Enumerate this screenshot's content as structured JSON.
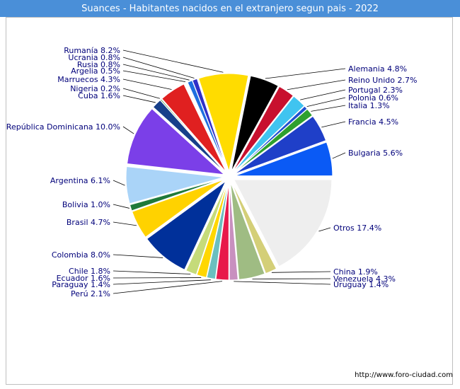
{
  "header": {
    "title": "Suances - Habitantes nacidos en el extranjero segun pais - 2022"
  },
  "footer": {
    "url": "http://www.foro-ciudad.com"
  },
  "chart_data": {
    "type": "pie",
    "title": "Suances - Habitantes nacidos en el extranjero segun pais - 2022",
    "unit": "%",
    "label_color": "#00007a",
    "slices": [
      {
        "label": "Otros",
        "value": 17.4,
        "color": "#eeeeee",
        "text": "Otros 17.4%"
      },
      {
        "label": "China",
        "value": 1.9,
        "color": "#d4cf78",
        "text": "China 1.9%"
      },
      {
        "label": "Venezuela",
        "value": 4.3,
        "color": "#9fbc83",
        "text": "Venezuela 4.3%"
      },
      {
        "label": "Uruguay",
        "value": 1.4,
        "color": "#c890bf",
        "text": "Uruguay 1.4%"
      },
      {
        "label": "Perú",
        "value": 2.1,
        "color": "#e8194a",
        "text": "Perú 2.1%"
      },
      {
        "label": "Paraguay",
        "value": 1.4,
        "color": "#6bbfbf",
        "text": "Paraguay 1.4%"
      },
      {
        "label": "Ecuador",
        "value": 1.6,
        "color": "#ffd700",
        "text": "Ecuador 1.6%"
      },
      {
        "label": "Chile",
        "value": 1.8,
        "color": "#c5db7a",
        "text": "Chile 1.8%"
      },
      {
        "label": "Colombia",
        "value": 8.0,
        "color": "#00309a",
        "text": "Colombia 8.0%"
      },
      {
        "label": "Brasil",
        "value": 4.7,
        "color": "#ffd200",
        "text": "Brasil 4.7%"
      },
      {
        "label": "Bolivia",
        "value": 1.0,
        "color": "#1f7a3a",
        "text": "Bolivia 1.0%"
      },
      {
        "label": "Argentina",
        "value": 6.1,
        "color": "#aad4f8",
        "text": "Argentina 6.1%"
      },
      {
        "label": "República Dominicana",
        "value": 10.0,
        "color": "#7b3fe8",
        "text": "República Dominicana 10.0%"
      },
      {
        "label": "Cuba",
        "value": 1.6,
        "color": "#173f8a",
        "text": "Cuba 1.6%"
      },
      {
        "label": "Nigeria",
        "value": 0.2,
        "color": "#3a8f3a",
        "text": "Nigeria 0.2%"
      },
      {
        "label": "Marruecos",
        "value": 4.3,
        "color": "#e02020",
        "text": "Marruecos 4.3%"
      },
      {
        "label": "Argelia",
        "value": 0.5,
        "color": "#ffffff",
        "text": "Argelia 0.5%"
      },
      {
        "label": "Rusia",
        "value": 0.8,
        "color": "#1e6fe0",
        "text": "Rusia 0.8%"
      },
      {
        "label": "Ucrania",
        "value": 0.8,
        "color": "#3030c8",
        "text": "Ucrania 0.8%"
      },
      {
        "label": "Rumanía",
        "value": 8.2,
        "color": "#ffdc00",
        "text": "Rumanía 8.2%"
      },
      {
        "label": "Alemania",
        "value": 4.8,
        "color": "#000000",
        "text": "Alemania 4.8%"
      },
      {
        "label": "Reino Unido",
        "value": 2.7,
        "color": "#c8102e",
        "text": "Reino Unido 2.7%"
      },
      {
        "label": "Portugal",
        "value": 2.3,
        "color": "#40c4f0",
        "text": "Portugal 2.3%"
      },
      {
        "label": "Polonia",
        "value": 0.6,
        "color": "#2050d0",
        "text": "Polonia 0.6%"
      },
      {
        "label": "Italia",
        "value": 1.3,
        "color": "#2ea02e",
        "text": "Italia 1.3%"
      },
      {
        "label": "Francia",
        "value": 4.5,
        "color": "#1f3fc8",
        "text": "Francia 4.5%"
      },
      {
        "label": "Bulgaria",
        "value": 5.6,
        "color": "#0a5af5",
        "text": "Bulgaria 5.6%"
      }
    ]
  }
}
